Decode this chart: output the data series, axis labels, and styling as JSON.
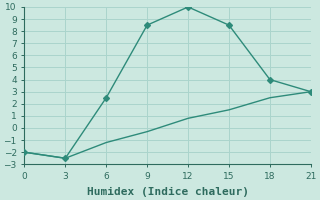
{
  "line1_x": [
    0,
    3,
    6,
    9,
    12,
    15,
    18,
    21
  ],
  "line1_y": [
    -2,
    -2.5,
    2.5,
    8.5,
    10,
    8.5,
    4,
    3
  ],
  "line2_x": [
    0,
    3,
    6,
    9,
    12,
    15,
    18,
    21
  ],
  "line2_y": [
    -2,
    -2.5,
    -1.2,
    -0.3,
    0.8,
    1.5,
    2.5,
    3
  ],
  "color": "#2e8b7a",
  "bg_color": "#cce8e0",
  "grid_color": "#aad4cc",
  "xlabel": "Humidex (Indice chaleur)",
  "xlim": [
    0,
    21
  ],
  "ylim": [
    -3,
    10
  ],
  "xticks": [
    0,
    3,
    6,
    9,
    12,
    15,
    18,
    21
  ],
  "yticks": [
    -3,
    -2,
    -1,
    0,
    1,
    2,
    3,
    4,
    5,
    6,
    7,
    8,
    9,
    10
  ],
  "marker": "D",
  "markersize": 3,
  "linewidth": 1.0,
  "font_color": "#2e6b5e",
  "xlabel_fontsize": 8,
  "tick_fontsize": 6.5
}
